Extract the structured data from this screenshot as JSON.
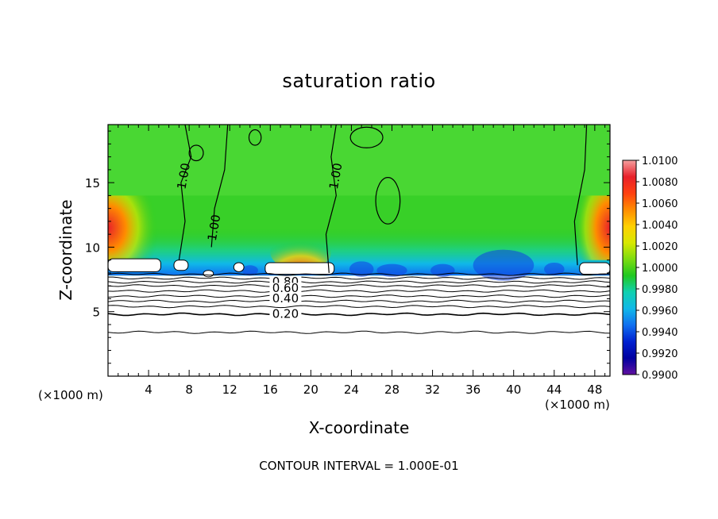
{
  "chart_data": {
    "type": "heatmap",
    "title": "saturation ratio",
    "xlabel": "X-coordinate",
    "ylabel": "Z-coordinate",
    "x_unit_left": "(×1000 m)",
    "x_unit_right": "(×1000 m)",
    "xlim": [
      0,
      49.5
    ],
    "ylim": [
      0,
      19.5
    ],
    "xticks": [
      4,
      8,
      12,
      16,
      20,
      24,
      28,
      32,
      36,
      40,
      44,
      48
    ],
    "yticks": [
      5,
      10,
      15
    ],
    "colorbar": {
      "range": [
        0.99,
        1.01
      ],
      "labels": [
        "1.0100",
        "1.0080",
        "1.0060",
        "1.0040",
        "1.0020",
        "1.0000",
        "0.9980",
        "0.9960",
        "0.9940",
        "0.9920",
        "0.9900"
      ],
      "colors": [
        "#f5a0a0",
        "#e8202a",
        "#ff4010",
        "#ff8c00",
        "#ffd000",
        "#d8e800",
        "#7cdc10",
        "#20c820",
        "#10d0b0",
        "#10b8e8",
        "#1070f0",
        "#0020d0",
        "#0000a0",
        "#6010a0"
      ]
    },
    "contour_labels": [
      {
        "text": "1.00",
        "x": 7.5,
        "y": 15.5
      },
      {
        "text": "1.00",
        "x": 10.5,
        "y": 11.5
      },
      {
        "text": "1.00",
        "x": 22.5,
        "y": 15.5
      },
      {
        "text": "0.80",
        "x": 17.5,
        "y": 7.3
      },
      {
        "text": "0.60",
        "x": 17.5,
        "y": 6.8
      },
      {
        "text": "0.40",
        "x": 17.5,
        "y": 6.0
      },
      {
        "text": "0.20",
        "x": 17.5,
        "y": 4.8
      }
    ],
    "lower_contours": [
      7.9,
      7.6,
      7.3,
      7.0,
      6.6,
      6.2,
      5.8,
      5.4,
      4.8,
      3.4
    ],
    "footer": "CONTOUR INTERVAL = 1.000E-01"
  }
}
